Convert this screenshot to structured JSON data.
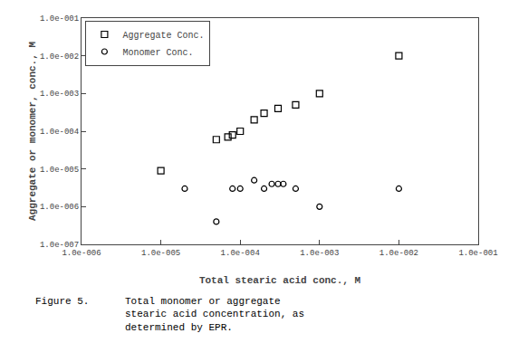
{
  "chart_data": {
    "type": "scatter",
    "xlabel": "Total stearic acid conc., M",
    "ylabel": "Aggregate or monomer, conc., M",
    "log": true,
    "grid": false,
    "legend": "upper left",
    "series": [
      {
        "name": "Aggregate Conc.",
        "color": "#000000",
        "marker": "square",
        "x": [
          1e-05,
          5e-05,
          7e-05,
          8e-05,
          0.0001,
          0.00015,
          0.0002,
          0.0003,
          0.0005,
          0.001,
          0.01
        ],
        "values": [
          9e-06,
          6e-05,
          7e-05,
          8e-05,
          0.0001,
          0.0002,
          0.0003,
          0.0004,
          0.0005,
          0.001,
          0.01
        ]
      },
      {
        "name": "Monomer Conc.",
        "color": "#000000",
        "marker": "circle",
        "x": [
          2e-05,
          5e-05,
          8e-05,
          0.0001,
          0.00015,
          0.0002,
          0.00025,
          0.0003,
          0.00035,
          0.0005,
          0.001,
          0.01
        ],
        "values": [
          3e-06,
          4e-07,
          3e-06,
          3e-06,
          5e-06,
          3e-06,
          4e-06,
          4e-06,
          4e-06,
          3e-06,
          1e-06,
          3e-06
        ]
      }
    ],
    "xlim": [
      1e-06,
      0.1
    ],
    "xticks": [
      {
        "value": 1e-06,
        "label": "1.0e-006"
      },
      {
        "value": 1e-05,
        "label": "1.0e-005"
      },
      {
        "value": 0.0001,
        "label": "1.0e-004"
      },
      {
        "value": 0.001,
        "label": "1.0e-003"
      },
      {
        "value": 0.01,
        "label": "1.0e-002"
      },
      {
        "value": 0.1,
        "label": "1.0e-001"
      }
    ],
    "ylim": [
      1e-07,
      0.1
    ],
    "yticks": [
      {
        "value": 1e-07,
        "label": "1.0e-007"
      },
      {
        "value": 1e-06,
        "label": "1.0e-006"
      },
      {
        "value": 1e-05,
        "label": "1.0e-005"
      },
      {
        "value": 0.0001,
        "label": "1.0e-004"
      },
      {
        "value": 0.001,
        "label": "1.0e-003"
      },
      {
        "value": 0.01,
        "label": "1.0e-002"
      },
      {
        "value": 0.1,
        "label": "1.0e-001"
      }
    ],
    "annotations": [
      {
        "text": "Figure 5.      Total monomer or aggregate\n               stearic acid concentration, as\n               determined by EPR."
      }
    ]
  }
}
